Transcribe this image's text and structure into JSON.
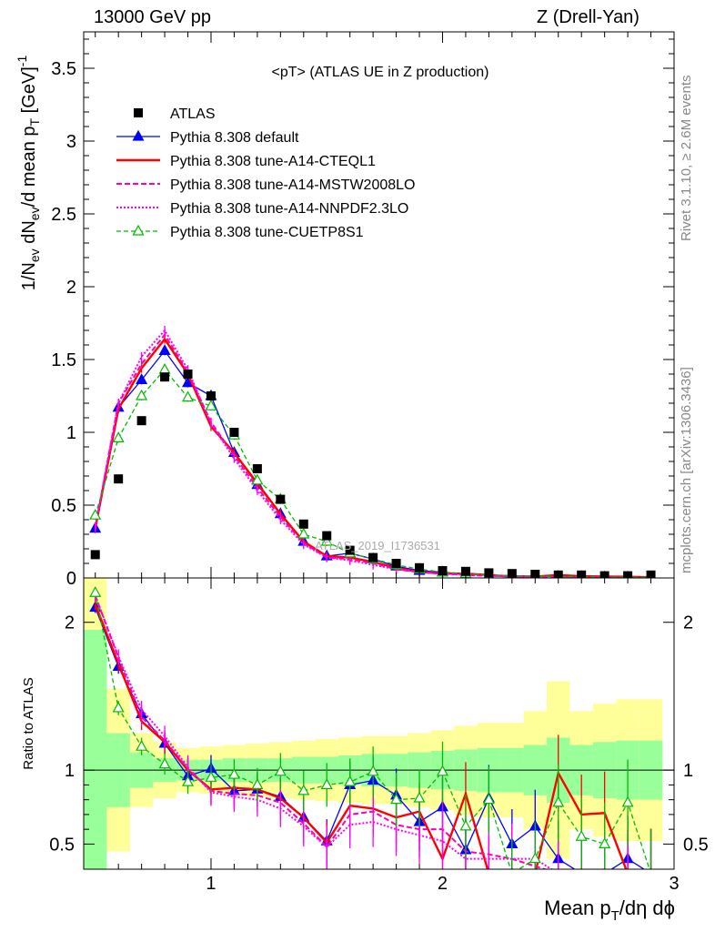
{
  "header": {
    "left": "13000 GeV pp",
    "right": "Z (Drell-Yan)"
  },
  "side_labels": {
    "rivet": "Rivet 3.1.10, ≥ 2.6M events",
    "mcplots": "mcplots.cern.ch [arXiv:1306.3436]"
  },
  "watermark": "ATLAS_2019_I1736531",
  "colors": {
    "atlas": "#000000",
    "default": "#0000ff",
    "cteql1": "#ff0000",
    "mstw": "#ff00aa",
    "nnpdf": "#ff00ff",
    "cuetp8s1": "#00bb00",
    "band_inner": "#99ff99",
    "band_outer": "#ffff99"
  },
  "chart_data": [
    {
      "type": "line",
      "title": "<pT> (ATLAS UE in Z production)",
      "ylabel": "1/Nev dNev/d mean pT [GeV]^-1",
      "xlim": [
        0.45,
        3.0
      ],
      "ylim": [
        0,
        3.75
      ],
      "yticks": [
        "0",
        "0.5",
        "1",
        "1.5",
        "2",
        "2.5",
        "3",
        "3.5"
      ],
      "legend_position": "top-left",
      "x": [
        0.5,
        0.6,
        0.7,
        0.8,
        0.9,
        1.0,
        1.1,
        1.2,
        1.3,
        1.4,
        1.5,
        1.6,
        1.7,
        1.8,
        1.9,
        2.0,
        2.1,
        2.2,
        2.3,
        2.4,
        2.5,
        2.6,
        2.7,
        2.8,
        2.9
      ],
      "series": [
        {
          "name": "ATLAS",
          "key": "atlas",
          "style": "data",
          "values": [
            0.16,
            0.68,
            1.08,
            1.38,
            1.4,
            1.25,
            1.0,
            0.75,
            0.54,
            0.37,
            0.29,
            0.19,
            0.14,
            0.1,
            0.07,
            0.05,
            0.045,
            0.035,
            0.03,
            0.025,
            0.02,
            0.02,
            0.015,
            0.015,
            0.02
          ]
        },
        {
          "name": "Pythia 8.308 default",
          "key": "default",
          "style": "solid-tri",
          "values": [
            0.34,
            1.17,
            1.36,
            1.56,
            1.34,
            1.25,
            0.86,
            0.64,
            0.44,
            0.25,
            0.15,
            0.17,
            0.13,
            0.08,
            0.05,
            0.04,
            0.025,
            0.02,
            0.015,
            0.012,
            0.01,
            0.008,
            0.006,
            0.005,
            0.004
          ]
        },
        {
          "name": "Pythia 8.308 tune-A14-CTEQL1",
          "key": "cteql1",
          "style": "solid-thick",
          "values": [
            0.34,
            1.16,
            1.44,
            1.64,
            1.4,
            1.04,
            0.86,
            0.65,
            0.44,
            0.25,
            0.15,
            0.14,
            0.11,
            0.07,
            0.04,
            0.03,
            0.03,
            0.02,
            0.01,
            0.01,
            0.02,
            0.012,
            0.01,
            0.008,
            0.005
          ]
        },
        {
          "name": "Pythia 8.308 tune-A14-MSTW2008LO",
          "key": "mstw",
          "style": "dashed",
          "values": [
            0.35,
            1.2,
            1.47,
            1.67,
            1.41,
            1.07,
            0.84,
            0.62,
            0.42,
            0.24,
            0.14,
            0.13,
            0.1,
            0.06,
            0.04,
            0.03,
            0.02,
            0.015,
            0.01,
            0.008,
            0.006,
            0.005,
            0.004,
            0.003,
            0.002
          ]
        },
        {
          "name": "Pythia 8.308 tune-A14-NNPDF2.3LO",
          "key": "nnpdf",
          "style": "dotted",
          "values": [
            0.35,
            1.2,
            1.52,
            1.7,
            1.43,
            1.06,
            0.82,
            0.6,
            0.4,
            0.23,
            0.14,
            0.12,
            0.09,
            0.06,
            0.04,
            0.03,
            0.02,
            0.015,
            0.01,
            0.008,
            0.006,
            0.005,
            0.004,
            0.003,
            0.002
          ]
        },
        {
          "name": "Pythia 8.308 tune-CUETP8S1",
          "key": "cuetp8s1",
          "style": "dashed-tri",
          "values": [
            0.43,
            0.96,
            1.25,
            1.43,
            1.24,
            1.18,
            0.98,
            0.67,
            0.54,
            0.3,
            0.25,
            0.17,
            0.13,
            0.09,
            0.06,
            0.04,
            0.03,
            0.02,
            0.015,
            0.012,
            0.01,
            0.008,
            0.006,
            0.005,
            0.004
          ]
        }
      ]
    },
    {
      "type": "line",
      "xlabel": "Mean pT/dη dϕ",
      "ylabel": "Ratio to ATLAS",
      "xlim": [
        0.45,
        3.0
      ],
      "ylim": [
        0.33,
        2.3
      ],
      "yticks": [
        "0.5",
        "1",
        "2"
      ],
      "xticks": [
        "1",
        "2",
        "3"
      ],
      "x": [
        0.5,
        0.6,
        0.7,
        0.8,
        0.9,
        1.0,
        1.1,
        1.2,
        1.3,
        1.4,
        1.5,
        1.6,
        1.7,
        1.8,
        1.9,
        2.0,
        2.1,
        2.2,
        2.3,
        2.4,
        2.5,
        2.6,
        2.7,
        2.8,
        2.9
      ],
      "band_inner_halfwidth": [
        0.95,
        0.25,
        0.12,
        0.08,
        0.07,
        0.07,
        0.08,
        0.08,
        0.08,
        0.09,
        0.09,
        0.1,
        0.11,
        0.11,
        0.12,
        0.13,
        0.14,
        0.15,
        0.15,
        0.17,
        0.22,
        0.17,
        0.19,
        0.2,
        0.2
      ],
      "band_outer_halfwidth": [
        1.35,
        0.55,
        0.25,
        0.19,
        0.15,
        0.16,
        0.17,
        0.18,
        0.19,
        0.2,
        0.21,
        0.22,
        0.23,
        0.23,
        0.25,
        0.27,
        0.3,
        0.32,
        0.32,
        0.4,
        0.6,
        0.4,
        0.45,
        0.48,
        0.48
      ],
      "series": [
        {
          "key": "default",
          "style": "solid-tri",
          "values": [
            2.1,
            1.7,
            1.38,
            1.18,
            0.96,
            1.01,
            0.86,
            0.87,
            0.82,
            0.68,
            0.52,
            0.9,
            0.93,
            0.83,
            0.65,
            0.75,
            0.46,
            0.81,
            0.5,
            0.62,
            0.4,
            0.3,
            0.3,
            0.4,
            0.3
          ]
        },
        {
          "key": "cteql1",
          "style": "solid-thick",
          "values": [
            2.12,
            1.72,
            1.33,
            1.19,
            1.0,
            0.87,
            0.88,
            0.87,
            0.81,
            0.68,
            0.51,
            0.76,
            0.74,
            0.68,
            0.72,
            0.4,
            0.84,
            0.3,
            0.3,
            0.3,
            0.98,
            0.7,
            0.71,
            0.3,
            0.3
          ]
        },
        {
          "key": "mstw",
          "style": "dashed",
          "values": [
            2.18,
            1.76,
            1.36,
            1.2,
            1.01,
            0.86,
            0.84,
            0.83,
            0.78,
            0.64,
            0.48,
            0.7,
            0.72,
            0.63,
            0.6,
            0.6,
            0.45,
            0.43,
            0.4,
            0.35,
            0.3,
            0.3,
            0.3,
            0.3,
            0.3
          ]
        },
        {
          "key": "nnpdf",
          "style": "dotted",
          "values": [
            2.18,
            1.77,
            1.41,
            1.23,
            1.02,
            0.85,
            0.82,
            0.8,
            0.74,
            0.62,
            0.48,
            0.63,
            0.65,
            0.6,
            0.56,
            0.52,
            0.4,
            0.4,
            0.4,
            0.4,
            0.3,
            0.3,
            0.3,
            0.3,
            0.3
          ]
        },
        {
          "key": "cuetp8s1",
          "style": "dashed-tri",
          "values": [
            2.2,
            1.42,
            1.16,
            1.04,
            0.92,
            0.95,
            0.97,
            0.9,
            0.99,
            0.86,
            0.9,
            0.92,
            0.99,
            0.8,
            0.81,
            0.99,
            0.62,
            0.8,
            0.3,
            0.4,
            0.78,
            0.55,
            0.5,
            0.78,
            0.3
          ]
        }
      ]
    }
  ],
  "legend": [
    {
      "key": "atlas",
      "label": "ATLAS",
      "style": "data"
    },
    {
      "key": "default",
      "label": "Pythia 8.308 default",
      "style": "solid-tri"
    },
    {
      "key": "cteql1",
      "label": "Pythia 8.308 tune-A14-CTEQL1",
      "style": "solid-thick"
    },
    {
      "key": "mstw",
      "label": "Pythia 8.308 tune-A14-MSTW2008LO",
      "style": "dashed"
    },
    {
      "key": "nnpdf",
      "label": "Pythia 8.308 tune-A14-NNPDF2.3LO",
      "style": "dotted"
    },
    {
      "key": "cuetp8s1",
      "label": "Pythia 8.308 tune-CUETP8S1",
      "style": "dashed-tri"
    }
  ]
}
